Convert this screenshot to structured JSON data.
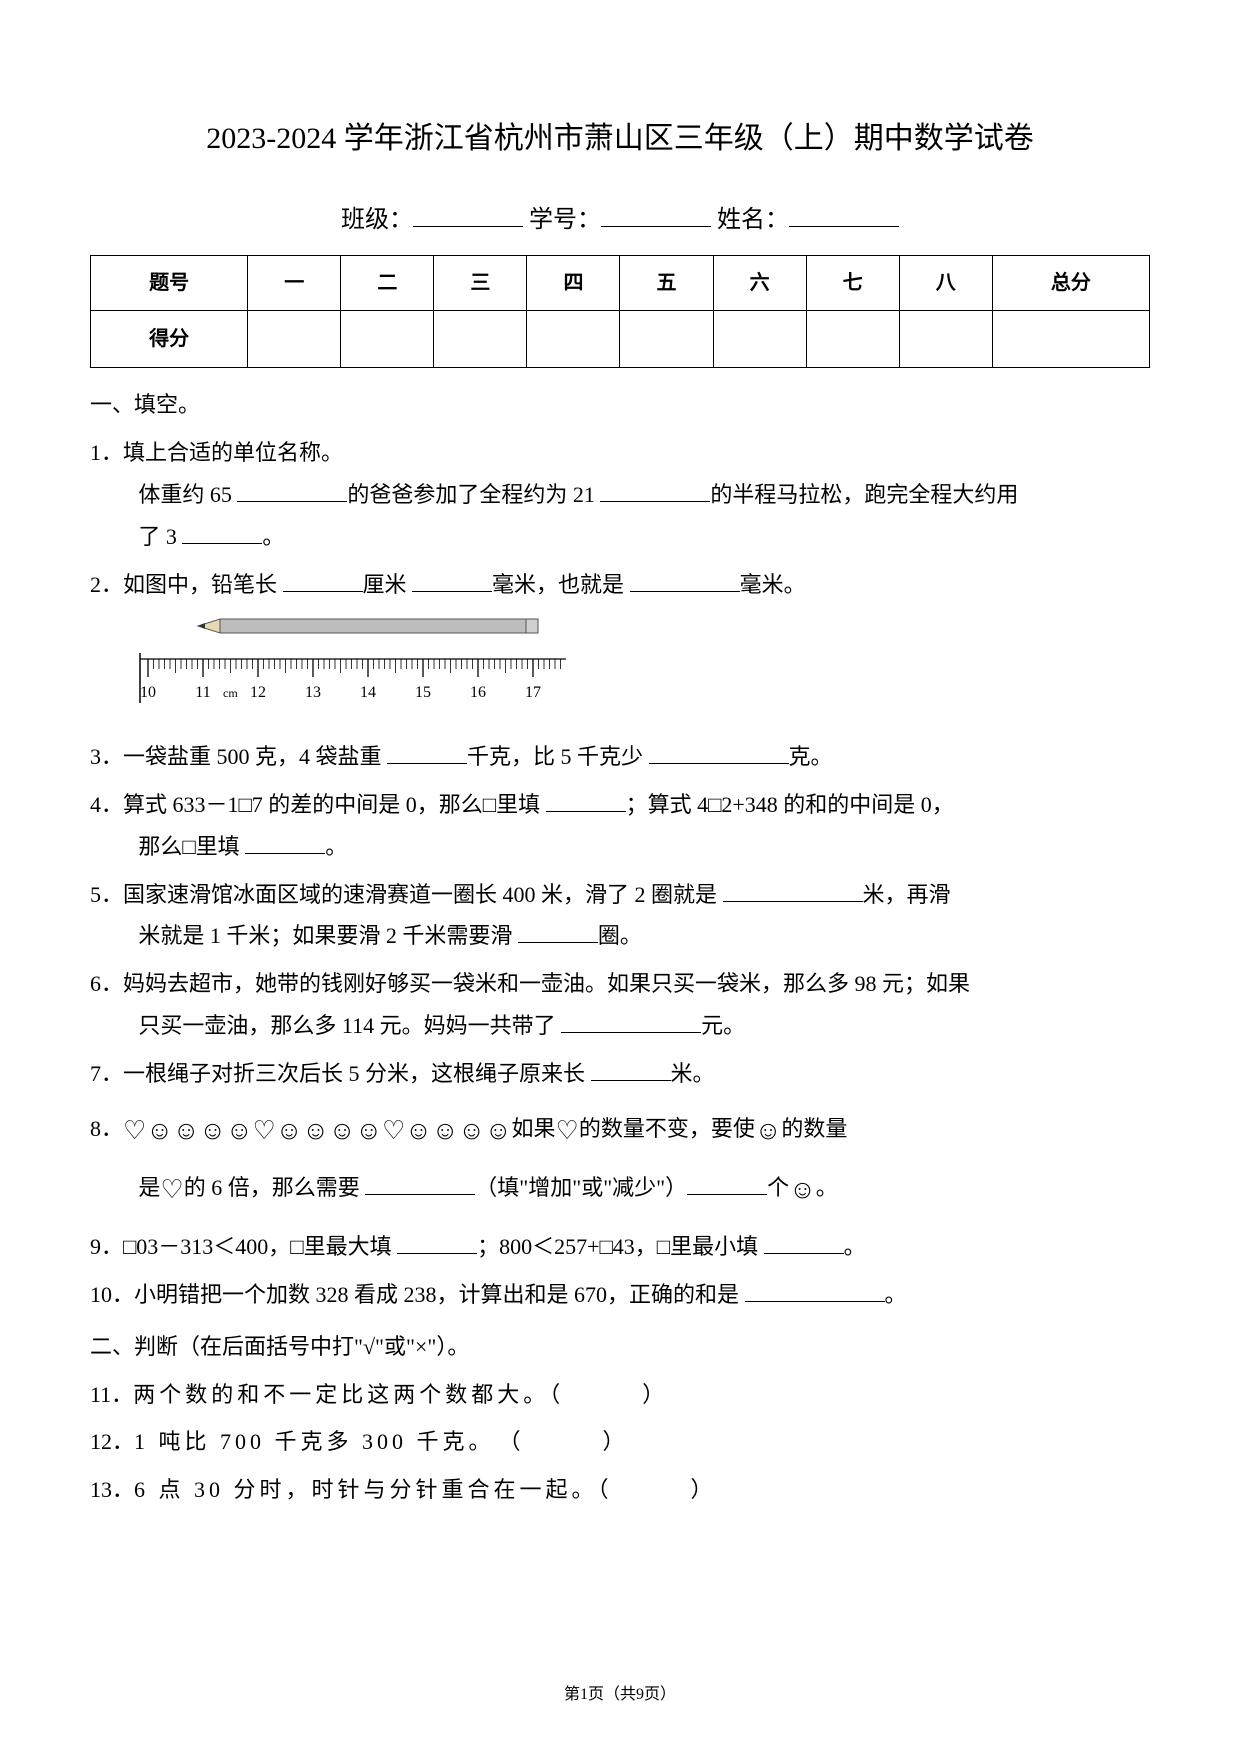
{
  "title": "2023-2024 学年浙江省杭州市萧山区三年级（上）期中数学试卷",
  "info": {
    "class_label": "班级：",
    "id_label": "学号：",
    "name_label": "姓名："
  },
  "score_table": {
    "headers": [
      "题号",
      "一",
      "二",
      "三",
      "四",
      "五",
      "六",
      "七",
      "八",
      "总分"
    ],
    "row_label": "得分"
  },
  "sec1": "一、填空。",
  "q1": {
    "num": "1．",
    "lead": "填上合适的单位名称。",
    "line1a": "体重约 65 ",
    "line1b": "的爸爸参加了全程约为 21 ",
    "line1c": "的半程马拉松，跑完全程大约用",
    "line2a": "了 3 ",
    "line2b": "。"
  },
  "q2": {
    "num": "2．",
    "a": "如图中，铅笔长 ",
    "b": "厘米 ",
    "c": "毫米，也就是 ",
    "d": "毫米。",
    "ruler": {
      "pencil_color": "#8a8a8a",
      "tip_color": "#333333",
      "ticks": [
        "10",
        "11",
        "12",
        "13",
        "14",
        "15",
        "16",
        "17"
      ],
      "unit_label": "11 cm 12",
      "tick_start_x": 10,
      "tick_spacing": 55,
      "major_h": 18,
      "minor_h": 10,
      "ruler_w": 450,
      "ruler_h": 26,
      "pencil_len": 340,
      "pencil_h": 14
    }
  },
  "q3": {
    "num": "3．",
    "a": "一袋盐重 500 克，4 袋盐重 ",
    "b": "千克，比 5 千克少 ",
    "c": "克。"
  },
  "q4": {
    "num": "4．",
    "a": "算式 633－1□7 的差的中间是 0，那么□里填 ",
    "b": "；算式 4□2+348 的和的中间是 0，",
    "c": "那么□里填 ",
    "d": "。"
  },
  "q5": {
    "num": "5．",
    "a": "国家速滑馆冰面区域的速滑赛道一圈长 400 米，滑了 2 圈就是 ",
    "b": "米，再滑",
    "c": "米就是 1 千米；如果要滑 2 千米需要滑 ",
    "d": "圈。"
  },
  "q6": {
    "num": "6．",
    "a": "妈妈去超市，她带的钱刚好够买一袋米和一壶油。如果只买一袋米，那么多 98 元；如果",
    "b": "只买一壶油，那么多 114 元。妈妈一共带了 ",
    "c": "元。"
  },
  "q7": {
    "num": "7．",
    "a": "一根绳子对折三次后长 5 分米，这根绳子原来长 ",
    "b": "米。"
  },
  "q8": {
    "num": "8．",
    "seq": "♡☺☺☺☺♡☺☺☺☺♡☺☺☺☺",
    "a": "如果",
    "b": "的数量不变，要使",
    "c": "的数量",
    "d": "是",
    "e": "的 6 倍，那么需要 ",
    "f": "（填\"增加\"或\"减少\"）",
    "g": "个",
    "h": "。"
  },
  "q9": {
    "num": "9．",
    "a": "□03－313＜400，□里最大填 ",
    "b": "；800＜257+□43，□里最小填 ",
    "c": "。"
  },
  "q10": {
    "num": "10．",
    "a": "小明错把一个加数 328 看成 238，计算出和是 670，正确的和是 ",
    "b": "。"
  },
  "sec2": "二、判断（在后面括号中打\"√\"或\"×\"）。",
  "q11": {
    "num": "11．",
    "a": "两个数的和不一定比这两个数都大。（　　　）"
  },
  "q12": {
    "num": "12．",
    "a": "1 吨比 700 千克多 300 千克。　（　　　）"
  },
  "q13": {
    "num": "13．",
    "a": "6 点 30 分时，时针与分针重合在一起。（　　　）"
  },
  "footer": "第1页（共9页）"
}
